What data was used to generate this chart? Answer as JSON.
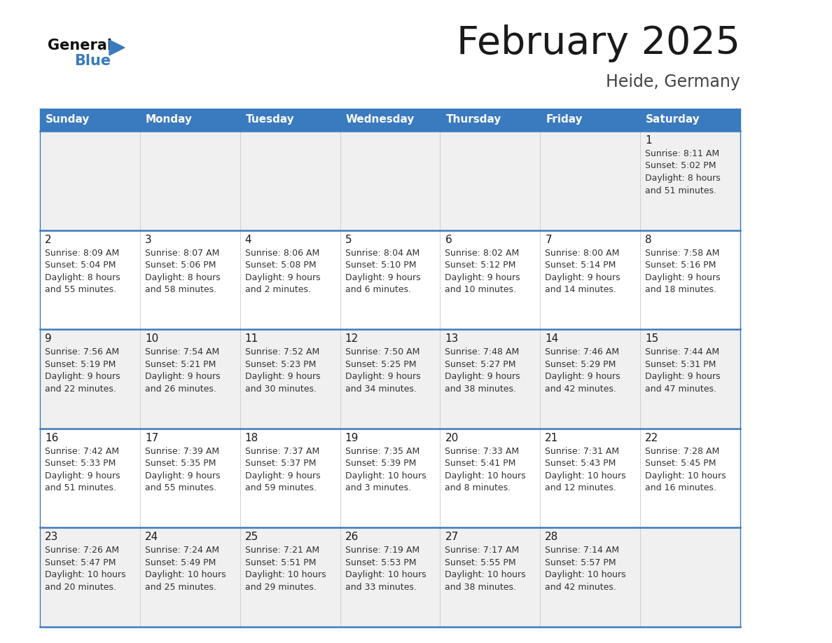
{
  "title": "February 2025",
  "subtitle": "Heide, Germany",
  "header_color": "#3a7abf",
  "header_text_color": "#ffffff",
  "days_of_week": [
    "Sunday",
    "Monday",
    "Tuesday",
    "Wednesday",
    "Thursday",
    "Friday",
    "Saturday"
  ],
  "cell_bg_week1": "#f0f0f0",
  "cell_bg_week2": "#ffffff",
  "cell_bg_week3": "#f0f0f0",
  "cell_bg_week4": "#ffffff",
  "cell_bg_week5": "#f0f0f0",
  "divider_color": "#3a7abf",
  "col_line_color": "#c8c8c8",
  "title_color": "#1a1a1a",
  "subtitle_color": "#444444",
  "day_number_color": "#1a1a1a",
  "info_color": "#333333",
  "logo_general_color": "#111111",
  "logo_blue_color": "#3a7abf",
  "weeks": [
    [
      {
        "day": null,
        "info": null
      },
      {
        "day": null,
        "info": null
      },
      {
        "day": null,
        "info": null
      },
      {
        "day": null,
        "info": null
      },
      {
        "day": null,
        "info": null
      },
      {
        "day": null,
        "info": null
      },
      {
        "day": 1,
        "info": "Sunrise: 8:11 AM\nSunset: 5:02 PM\nDaylight: 8 hours\nand 51 minutes."
      }
    ],
    [
      {
        "day": 2,
        "info": "Sunrise: 8:09 AM\nSunset: 5:04 PM\nDaylight: 8 hours\nand 55 minutes."
      },
      {
        "day": 3,
        "info": "Sunrise: 8:07 AM\nSunset: 5:06 PM\nDaylight: 8 hours\nand 58 minutes."
      },
      {
        "day": 4,
        "info": "Sunrise: 8:06 AM\nSunset: 5:08 PM\nDaylight: 9 hours\nand 2 minutes."
      },
      {
        "day": 5,
        "info": "Sunrise: 8:04 AM\nSunset: 5:10 PM\nDaylight: 9 hours\nand 6 minutes."
      },
      {
        "day": 6,
        "info": "Sunrise: 8:02 AM\nSunset: 5:12 PM\nDaylight: 9 hours\nand 10 minutes."
      },
      {
        "day": 7,
        "info": "Sunrise: 8:00 AM\nSunset: 5:14 PM\nDaylight: 9 hours\nand 14 minutes."
      },
      {
        "day": 8,
        "info": "Sunrise: 7:58 AM\nSunset: 5:16 PM\nDaylight: 9 hours\nand 18 minutes."
      }
    ],
    [
      {
        "day": 9,
        "info": "Sunrise: 7:56 AM\nSunset: 5:19 PM\nDaylight: 9 hours\nand 22 minutes."
      },
      {
        "day": 10,
        "info": "Sunrise: 7:54 AM\nSunset: 5:21 PM\nDaylight: 9 hours\nand 26 minutes."
      },
      {
        "day": 11,
        "info": "Sunrise: 7:52 AM\nSunset: 5:23 PM\nDaylight: 9 hours\nand 30 minutes."
      },
      {
        "day": 12,
        "info": "Sunrise: 7:50 AM\nSunset: 5:25 PM\nDaylight: 9 hours\nand 34 minutes."
      },
      {
        "day": 13,
        "info": "Sunrise: 7:48 AM\nSunset: 5:27 PM\nDaylight: 9 hours\nand 38 minutes."
      },
      {
        "day": 14,
        "info": "Sunrise: 7:46 AM\nSunset: 5:29 PM\nDaylight: 9 hours\nand 42 minutes."
      },
      {
        "day": 15,
        "info": "Sunrise: 7:44 AM\nSunset: 5:31 PM\nDaylight: 9 hours\nand 47 minutes."
      }
    ],
    [
      {
        "day": 16,
        "info": "Sunrise: 7:42 AM\nSunset: 5:33 PM\nDaylight: 9 hours\nand 51 minutes."
      },
      {
        "day": 17,
        "info": "Sunrise: 7:39 AM\nSunset: 5:35 PM\nDaylight: 9 hours\nand 55 minutes."
      },
      {
        "day": 18,
        "info": "Sunrise: 7:37 AM\nSunset: 5:37 PM\nDaylight: 9 hours\nand 59 minutes."
      },
      {
        "day": 19,
        "info": "Sunrise: 7:35 AM\nSunset: 5:39 PM\nDaylight: 10 hours\nand 3 minutes."
      },
      {
        "day": 20,
        "info": "Sunrise: 7:33 AM\nSunset: 5:41 PM\nDaylight: 10 hours\nand 8 minutes."
      },
      {
        "day": 21,
        "info": "Sunrise: 7:31 AM\nSunset: 5:43 PM\nDaylight: 10 hours\nand 12 minutes."
      },
      {
        "day": 22,
        "info": "Sunrise: 7:28 AM\nSunset: 5:45 PM\nDaylight: 10 hours\nand 16 minutes."
      }
    ],
    [
      {
        "day": 23,
        "info": "Sunrise: 7:26 AM\nSunset: 5:47 PM\nDaylight: 10 hours\nand 20 minutes."
      },
      {
        "day": 24,
        "info": "Sunrise: 7:24 AM\nSunset: 5:49 PM\nDaylight: 10 hours\nand 25 minutes."
      },
      {
        "day": 25,
        "info": "Sunrise: 7:21 AM\nSunset: 5:51 PM\nDaylight: 10 hours\nand 29 minutes."
      },
      {
        "day": 26,
        "info": "Sunrise: 7:19 AM\nSunset: 5:53 PM\nDaylight: 10 hours\nand 33 minutes."
      },
      {
        "day": 27,
        "info": "Sunrise: 7:17 AM\nSunset: 5:55 PM\nDaylight: 10 hours\nand 38 minutes."
      },
      {
        "day": 28,
        "info": "Sunrise: 7:14 AM\nSunset: 5:57 PM\nDaylight: 10 hours\nand 42 minutes."
      },
      {
        "day": null,
        "info": null
      }
    ]
  ],
  "cell_bgs": [
    "#f0f0f0",
    "#ffffff",
    "#f0f0f0",
    "#ffffff",
    "#f0f0f0"
  ]
}
